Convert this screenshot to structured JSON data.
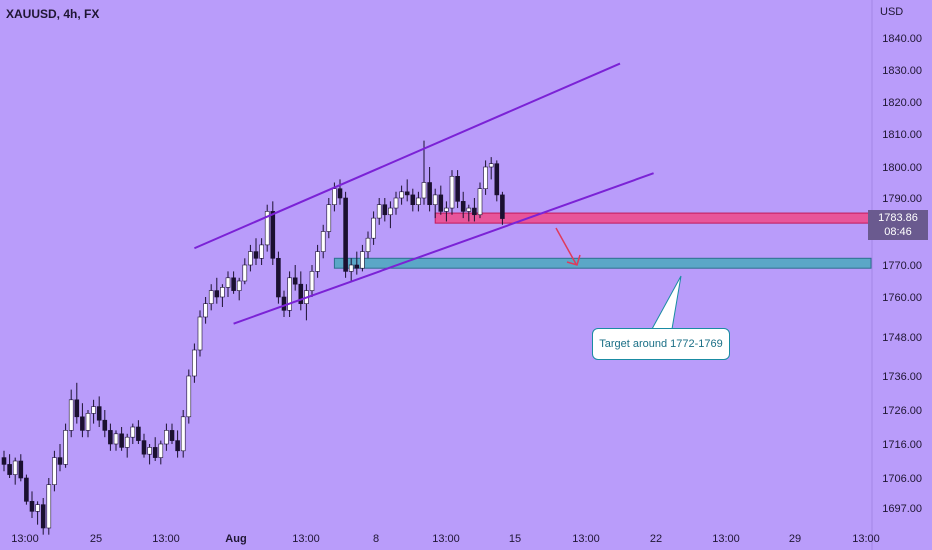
{
  "header": {
    "symbol": "XAUUSD, 4h, FX",
    "currency": "USD"
  },
  "price_badge": {
    "price": "1783.86",
    "countdown": "08:46"
  },
  "colors": {
    "background": "#b99cfa",
    "candle": "#ffffff",
    "channel": "#7b22d6",
    "resistance_zone": "#e8559a",
    "support_zone": "#5ba7c7",
    "arrow": "#e03a5b",
    "callout_border": "#1a8ca3",
    "axis_text": "#1f1633"
  },
  "annotations": {
    "callout_text": "Target around 1772-1769"
  },
  "chart_data": {
    "type": "candlestick",
    "title": "XAUUSD, 4h, FX",
    "y_axis": {
      "position": "right",
      "label": "USD",
      "ticks": [
        "1840.00",
        "1830.00",
        "1820.00",
        "1810.00",
        "1800.00",
        "1790.00",
        "1770.00",
        "1760.00",
        "1748.00",
        "1736.00",
        "1726.00",
        "1716.00",
        "1706.00",
        "1697.00"
      ]
    },
    "x_axis": {
      "ticks": [
        "13:00",
        "25",
        "13:00",
        "Aug",
        "13:00",
        "8",
        "13:00",
        "15",
        "13:00",
        "22",
        "13:00",
        "29",
        "13:00"
      ]
    },
    "grid": false,
    "legend": "none",
    "last_price": 1783.86,
    "zones": [
      {
        "name": "resistance",
        "from": 1782.5,
        "to": 1785.5
      },
      {
        "name": "support",
        "from": 1769,
        "to": 1772
      }
    ],
    "channel": {
      "upper": [
        [
          34,
          1775
        ],
        [
          110,
          1832
        ]
      ],
      "lower": [
        [
          41,
          1752
        ],
        [
          116,
          1798
        ]
      ]
    },
    "candles": [
      [
        1712,
        1714,
        1708,
        1710
      ],
      [
        1710,
        1713,
        1706,
        1707
      ],
      [
        1707,
        1712,
        1704,
        1711
      ],
      [
        1711,
        1713,
        1705,
        1706
      ],
      [
        1706,
        1707,
        1698,
        1699
      ],
      [
        1699,
        1702,
        1694,
        1696
      ],
      [
        1696,
        1699,
        1692,
        1698
      ],
      [
        1698,
        1700,
        1689,
        1691
      ],
      [
        1691,
        1706,
        1689,
        1704
      ],
      [
        1704,
        1714,
        1702,
        1712
      ],
      [
        1712,
        1716,
        1708,
        1710
      ],
      [
        1710,
        1722,
        1709,
        1720
      ],
      [
        1720,
        1732,
        1718,
        1729
      ],
      [
        1729,
        1734,
        1722,
        1724
      ],
      [
        1724,
        1728,
        1718,
        1720
      ],
      [
        1720,
        1726,
        1718,
        1725
      ],
      [
        1725,
        1729,
        1722,
        1727
      ],
      [
        1727,
        1730,
        1721,
        1723
      ],
      [
        1723,
        1726,
        1718,
        1720
      ],
      [
        1720,
        1722,
        1714,
        1716
      ],
      [
        1716,
        1720,
        1714,
        1719
      ],
      [
        1719,
        1721,
        1714,
        1715
      ],
      [
        1715,
        1719,
        1712,
        1718
      ],
      [
        1718,
        1722,
        1716,
        1721
      ],
      [
        1721,
        1723,
        1716,
        1717
      ],
      [
        1717,
        1719,
        1712,
        1713
      ],
      [
        1713,
        1716,
        1710,
        1715
      ],
      [
        1715,
        1718,
        1711,
        1712
      ],
      [
        1712,
        1717,
        1710,
        1716
      ],
      [
        1716,
        1722,
        1714,
        1720
      ],
      [
        1720,
        1722,
        1716,
        1717
      ],
      [
        1717,
        1720,
        1712,
        1714
      ],
      [
        1714,
        1726,
        1712,
        1724
      ],
      [
        1724,
        1738,
        1722,
        1736
      ],
      [
        1736,
        1746,
        1734,
        1744
      ],
      [
        1744,
        1756,
        1742,
        1754
      ],
      [
        1754,
        1760,
        1752,
        1758
      ],
      [
        1758,
        1764,
        1756,
        1762
      ],
      [
        1762,
        1766,
        1758,
        1760
      ],
      [
        1760,
        1764,
        1757,
        1763
      ],
      [
        1763,
        1768,
        1760,
        1766
      ],
      [
        1766,
        1768,
        1761,
        1762
      ],
      [
        1762,
        1766,
        1759,
        1765
      ],
      [
        1765,
        1772,
        1764,
        1770
      ],
      [
        1770,
        1776,
        1768,
        1774
      ],
      [
        1774,
        1778,
        1770,
        1772
      ],
      [
        1772,
        1778,
        1770,
        1776
      ],
      [
        1776,
        1788,
        1774,
        1786
      ],
      [
        1786,
        1789,
        1770,
        1772
      ],
      [
        1772,
        1774,
        1758,
        1760
      ],
      [
        1760,
        1762,
        1754,
        1756
      ],
      [
        1756,
        1768,
        1754,
        1766
      ],
      [
        1766,
        1770,
        1762,
        1764
      ],
      [
        1764,
        1768,
        1756,
        1758
      ],
      [
        1758,
        1764,
        1753,
        1762
      ],
      [
        1762,
        1770,
        1760,
        1768
      ],
      [
        1768,
        1776,
        1766,
        1774
      ],
      [
        1774,
        1782,
        1772,
        1780
      ],
      [
        1780,
        1790,
        1778,
        1788
      ],
      [
        1788,
        1795,
        1786,
        1793
      ],
      [
        1793,
        1796,
        1788,
        1790
      ],
      [
        1790,
        1792,
        1766,
        1768
      ],
      [
        1768,
        1772,
        1765,
        1770
      ],
      [
        1770,
        1774,
        1767,
        1769
      ],
      [
        1769,
        1776,
        1768,
        1774
      ],
      [
        1774,
        1780,
        1772,
        1778
      ],
      [
        1778,
        1786,
        1776,
        1784
      ],
      [
        1784,
        1790,
        1782,
        1788
      ],
      [
        1788,
        1790,
        1783,
        1785
      ],
      [
        1785,
        1789,
        1781,
        1787
      ],
      [
        1787,
        1792,
        1785,
        1790
      ],
      [
        1790,
        1794,
        1788,
        1792
      ],
      [
        1792,
        1796,
        1789,
        1791
      ],
      [
        1791,
        1793,
        1786,
        1788
      ],
      [
        1788,
        1792,
        1786,
        1790
      ],
      [
        1790,
        1808,
        1788,
        1795
      ],
      [
        1795,
        1800,
        1786,
        1788
      ],
      [
        1788,
        1793,
        1784,
        1791
      ],
      [
        1791,
        1794,
        1785,
        1786
      ],
      [
        1786,
        1789,
        1783,
        1787
      ],
      [
        1787,
        1799,
        1785,
        1797
      ],
      [
        1797,
        1799,
        1787,
        1789
      ],
      [
        1789,
        1792,
        1784,
        1786
      ],
      [
        1786,
        1788,
        1783,
        1787
      ],
      [
        1787,
        1790,
        1783,
        1785
      ],
      [
        1785,
        1795,
        1784,
        1793
      ],
      [
        1793,
        1802,
        1791,
        1800
      ],
      [
        1800,
        1803,
        1796,
        1801
      ],
      [
        1801,
        1802,
        1789,
        1791
      ],
      [
        1791,
        1792,
        1782,
        1783.86
      ]
    ]
  }
}
